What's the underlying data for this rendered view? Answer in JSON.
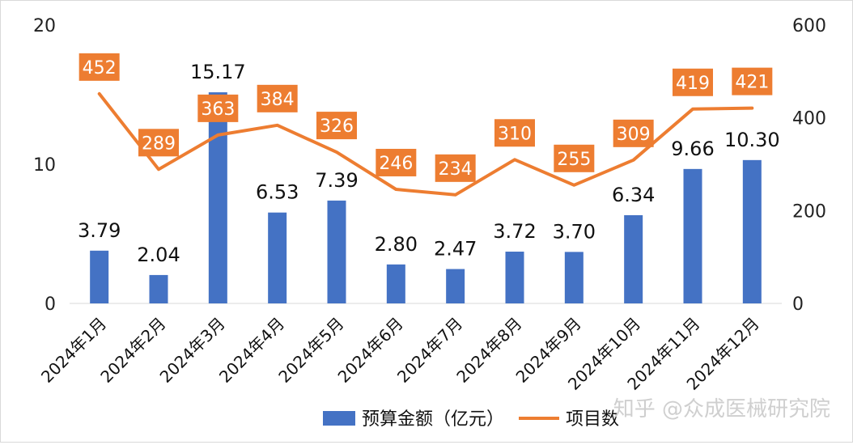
{
  "chart_data": {
    "type": "bar+line",
    "categories": [
      "2024年1月",
      "2024年2月",
      "2024年3月",
      "2024年4月",
      "2024年5月",
      "2024年6月",
      "2024年7月",
      "2024年8月",
      "2024年9月",
      "2024年10月",
      "2024年11月",
      "2024年12月"
    ],
    "series": [
      {
        "name": "预算金额（亿元）",
        "type": "bar",
        "axis": "left",
        "color": "#4472C4",
        "values": [
          3.79,
          2.04,
          15.17,
          6.53,
          7.39,
          2.8,
          2.47,
          3.72,
          3.7,
          6.34,
          9.66,
          10.3
        ],
        "labels": [
          "3.79",
          "2.04",
          "15.17",
          "6.53",
          "7.39",
          "2.80",
          "2.47",
          "3.72",
          "3.70",
          "6.34",
          "9.66",
          "10.30"
        ]
      },
      {
        "name": "项目数",
        "type": "line",
        "axis": "right",
        "color": "#ED7D31",
        "values": [
          452,
          289,
          363,
          384,
          326,
          246,
          234,
          310,
          255,
          309,
          419,
          421
        ],
        "labels": [
          "452",
          "289",
          "363",
          "384",
          "326",
          "246",
          "234",
          "310",
          "255",
          "309",
          "419",
          "421"
        ]
      }
    ],
    "y_left": {
      "min": 0,
      "max": 20,
      "ticks": [
        "0",
        "10",
        "20"
      ]
    },
    "y_right": {
      "min": 0,
      "max": 600,
      "ticks": [
        "0",
        "200",
        "400",
        "600"
      ]
    },
    "legend_position": "bottom-center",
    "grid": false
  },
  "watermark": "知乎 @众成医械研究院"
}
